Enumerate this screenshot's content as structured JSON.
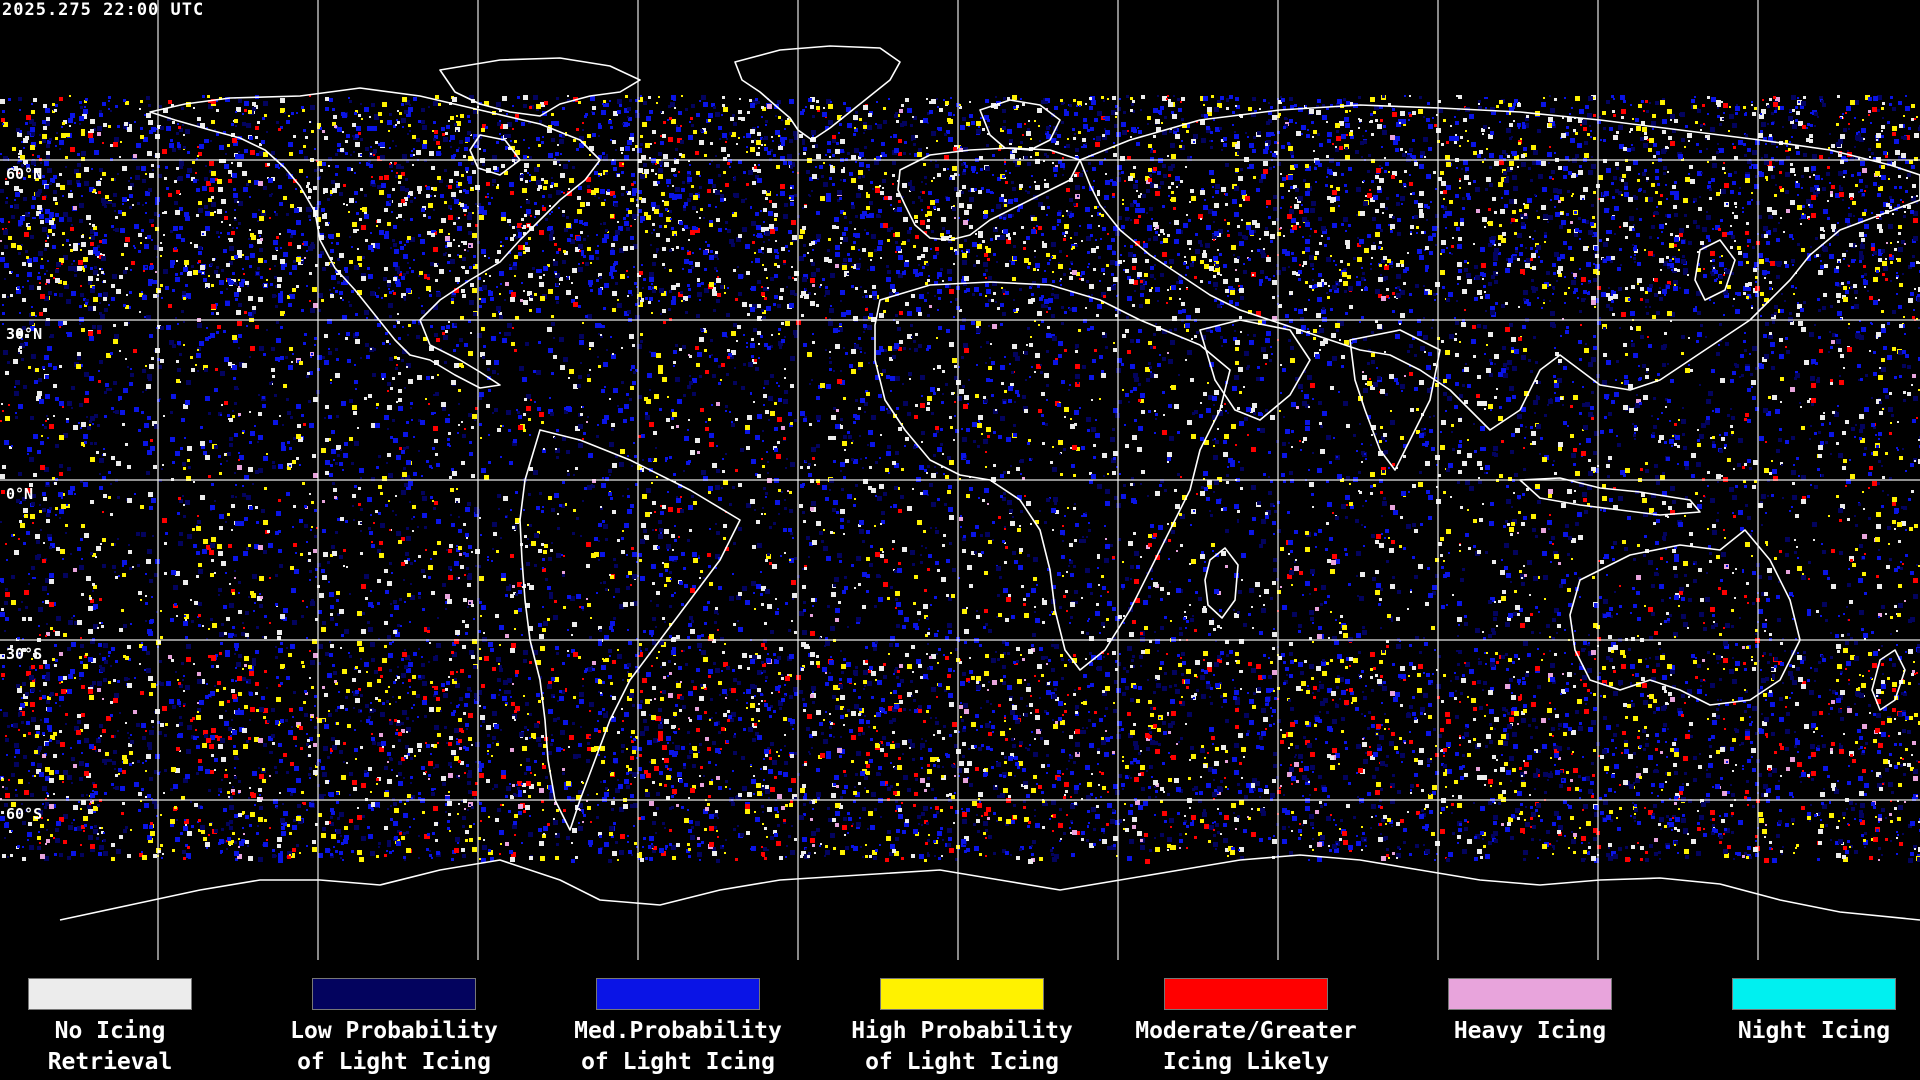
{
  "header": {
    "timestamp": "2025.275 22:00 UTC"
  },
  "map": {
    "projection": "equirectangular",
    "lat_labels": [
      "60°N",
      "30°N",
      "0°N",
      "30°S",
      "60°S"
    ],
    "grid": true,
    "coastline_color": "#ffffff"
  },
  "legend": {
    "items": [
      {
        "line1": "No Icing",
        "line2": "Retrieval",
        "color": "#ececec"
      },
      {
        "line1": "Low Probability",
        "line2": "of Light Icing",
        "color": "#03035e"
      },
      {
        "line1": "Med.Probability",
        "line2": "of Light Icing",
        "color": "#0a14e6"
      },
      {
        "line1": "High Probability",
        "line2": "of Light Icing",
        "color": "#fff200"
      },
      {
        "line1": "Moderate/Greater",
        "line2": "Icing Likely",
        "color": "#ff0000"
      },
      {
        "line1": "Heavy Icing",
        "line2": "",
        "color": "#e8a4dc"
      },
      {
        "line1": "Night Icing",
        "line2": "",
        "color": "#00f0f0"
      }
    ]
  }
}
